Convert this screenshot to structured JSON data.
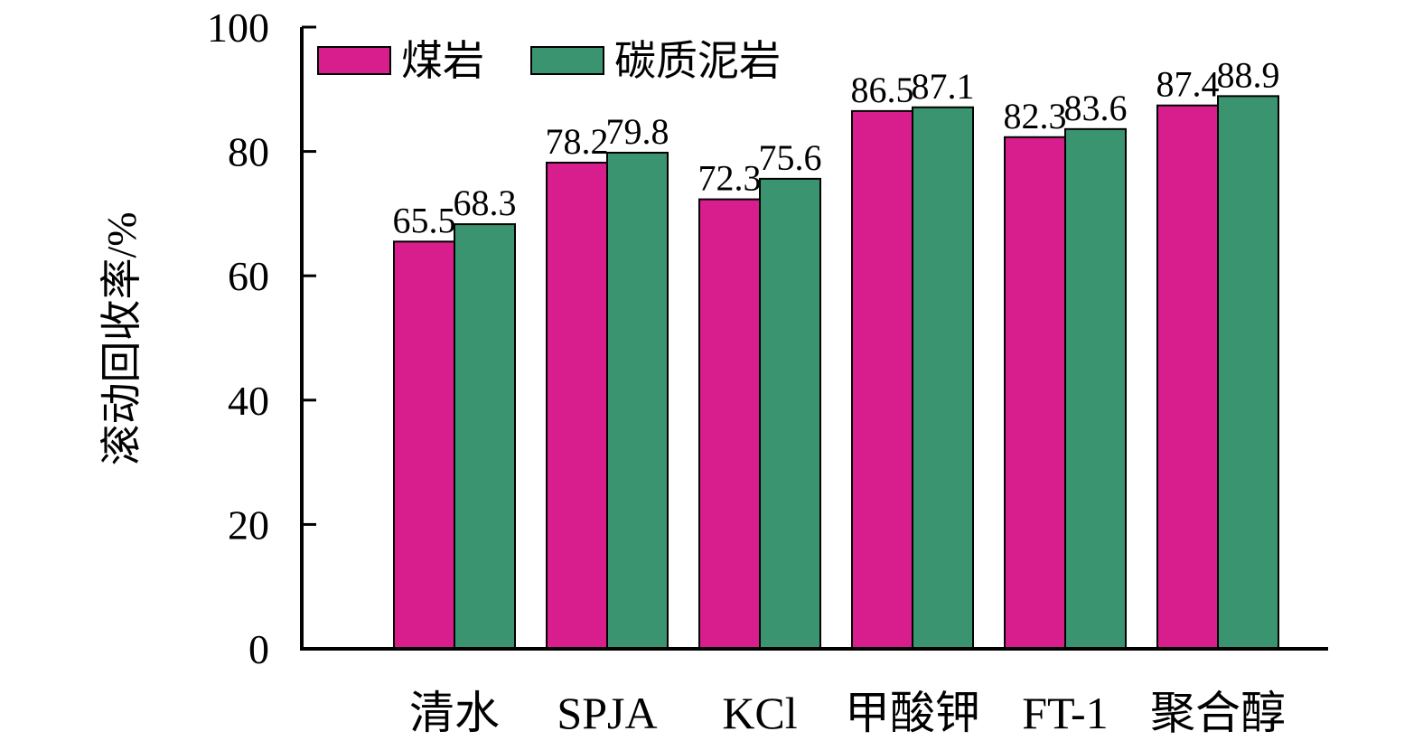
{
  "chart_data": {
    "type": "bar",
    "title": "",
    "xlabel": "",
    "ylabel": "滚动回收率/%",
    "ylim": [
      0,
      100
    ],
    "yticks": [
      0,
      20,
      40,
      60,
      80,
      100
    ],
    "categories": [
      "清水",
      "SPJA",
      "KCl",
      "甲酸钾",
      "FT-1",
      "聚合醇"
    ],
    "series": [
      {
        "name": "煤岩",
        "color": "#d81e8c",
        "values": [
          65.5,
          78.2,
          72.3,
          86.5,
          82.3,
          87.4
        ]
      },
      {
        "name": "碳质泥岩",
        "color": "#3a9470",
        "values": [
          68.3,
          79.8,
          75.6,
          87.1,
          83.6,
          88.9
        ]
      }
    ],
    "legend": "top-left",
    "grid": false
  }
}
